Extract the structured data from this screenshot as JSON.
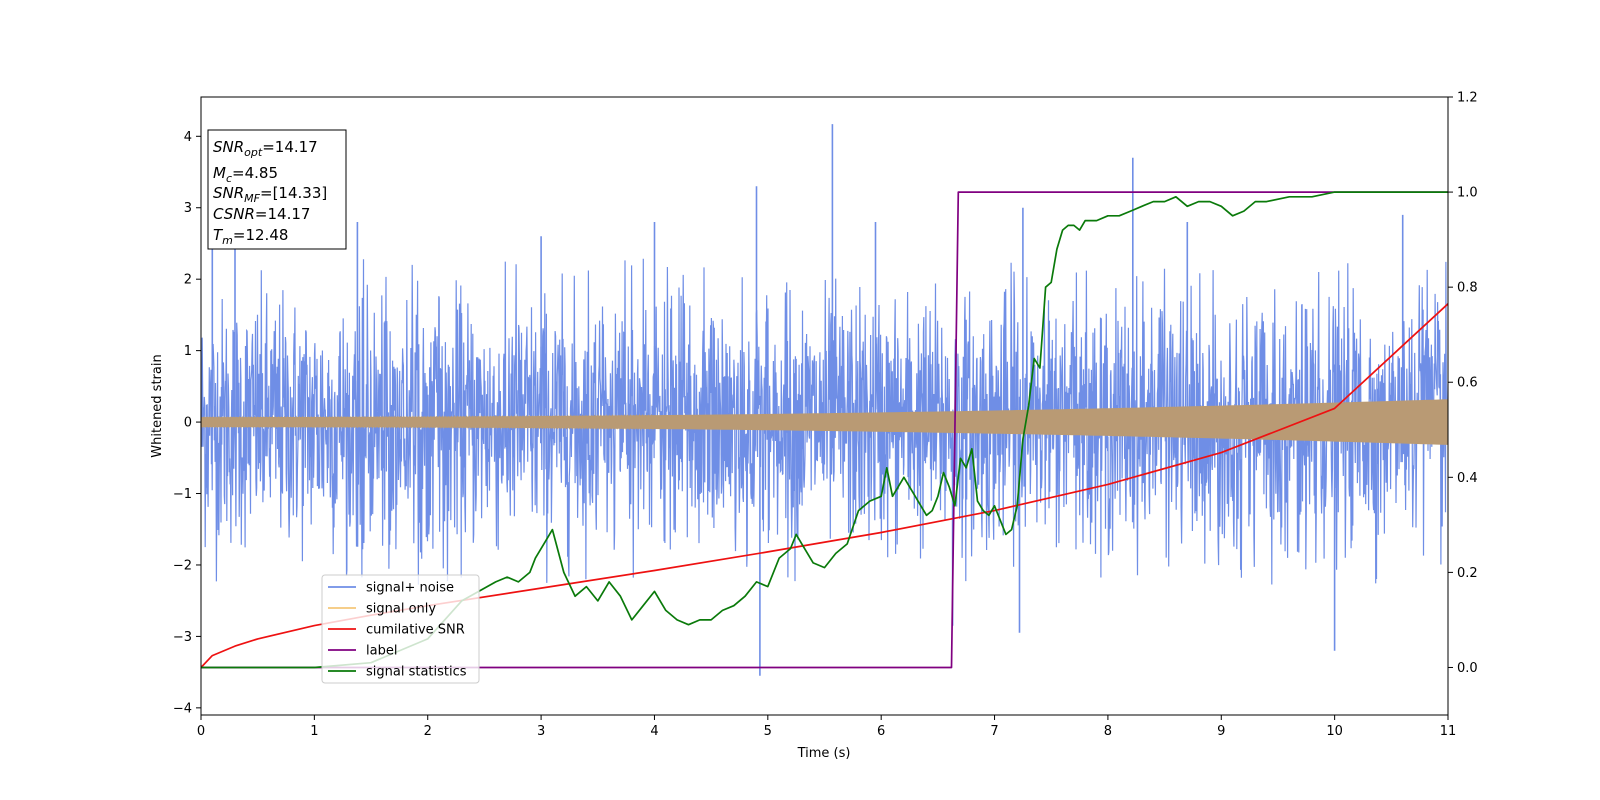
{
  "chart_data": {
    "type": "line",
    "xlabel": "Time (s)",
    "ylabel": "Whitened strain",
    "xlim": [
      0,
      11
    ],
    "ylim_left": [
      -4.1,
      4.55
    ],
    "ylim_right": [
      -0.1,
      1.2
    ],
    "x_ticks": [
      0,
      1,
      2,
      3,
      4,
      5,
      6,
      7,
      8,
      9,
      10,
      11
    ],
    "y_ticks_left": [
      -4,
      -3,
      -2,
      -1,
      0,
      1,
      2,
      3,
      4
    ],
    "y_ticks_right": [
      0.0,
      0.2,
      0.4,
      0.6,
      0.8,
      1.0,
      1.2
    ],
    "grid": false,
    "legend_position": "lower-left",
    "colors": {
      "signal_noise": "#6f8ee6",
      "signal_only": "#f5c77a",
      "overlap": "#b99a74",
      "cumulative_snr": "#ee1111",
      "label": "#800080",
      "signal_statistics": "#0a7a0a"
    },
    "info_box": [
      {
        "symbol": "SNR",
        "sub": "opt",
        "value": "=14.17"
      },
      {
        "symbol": "M",
        "sub": "c",
        "value": "=4.85"
      },
      {
        "symbol": "SNR",
        "sub": "MF",
        "value": "=[14.33]"
      },
      {
        "symbol": "CSNR",
        "sub": "",
        "value": "=14.17"
      },
      {
        "symbol": "T",
        "sub": "m",
        "value": "=12.48"
      }
    ],
    "series": [
      {
        "name": "signal+ noise",
        "axis": "left",
        "envelope_amplitude": 2.3,
        "spikes": [
          [
            0.1,
            2.5
          ],
          [
            0.3,
            2.7
          ],
          [
            1.38,
            2.8
          ],
          [
            3.0,
            2.6
          ],
          [
            4.0,
            2.8
          ],
          [
            4.9,
            3.3
          ],
          [
            4.93,
            -3.55
          ],
          [
            5.57,
            4.17
          ],
          [
            5.95,
            2.8
          ],
          [
            6.63,
            -2.85
          ],
          [
            7.22,
            -2.95
          ],
          [
            7.25,
            3.0
          ],
          [
            8.22,
            3.7
          ],
          [
            8.7,
            2.8
          ],
          [
            10.0,
            -3.2
          ],
          [
            10.6,
            2.9
          ]
        ]
      },
      {
        "name": "signal only",
        "axis": "left",
        "amplitude_start": 0.07,
        "amplitude_end": 0.32
      },
      {
        "name": "cumilative SNR",
        "axis": "right",
        "x": [
          0,
          0.1,
          0.3,
          0.5,
          1,
          1.5,
          2,
          3,
          4,
          5,
          6,
          7,
          8,
          9,
          10,
          11
        ],
        "y": [
          0.0,
          0.025,
          0.045,
          0.06,
          0.088,
          0.11,
          0.13,
          0.167,
          0.204,
          0.243,
          0.284,
          0.33,
          0.385,
          0.452,
          0.545,
          0.765
        ]
      },
      {
        "name": "label",
        "axis": "right",
        "x": [
          0,
          6.62,
          6.68,
          11
        ],
        "y": [
          0,
          0,
          1,
          1
        ]
      },
      {
        "name": "signal statistics",
        "axis": "right",
        "x": [
          0,
          1.0,
          1.5,
          2.0,
          2.3,
          2.6,
          2.7,
          2.8,
          2.9,
          2.95,
          3.0,
          3.05,
          3.1,
          3.2,
          3.3,
          3.4,
          3.5,
          3.6,
          3.7,
          3.8,
          3.9,
          4.0,
          4.1,
          4.2,
          4.3,
          4.4,
          4.5,
          4.6,
          4.7,
          4.8,
          4.9,
          5.0,
          5.1,
          5.2,
          5.25,
          5.3,
          5.35,
          5.4,
          5.5,
          5.6,
          5.7,
          5.8,
          5.9,
          6.0,
          6.05,
          6.1,
          6.2,
          6.3,
          6.4,
          6.45,
          6.5,
          6.55,
          6.6,
          6.65,
          6.7,
          6.75,
          6.8,
          6.85,
          6.9,
          6.95,
          7.0,
          7.1,
          7.15,
          7.2,
          7.25,
          7.3,
          7.35,
          7.4,
          7.45,
          7.5,
          7.55,
          7.6,
          7.65,
          7.7,
          7.75,
          7.8,
          7.85,
          7.9,
          8.0,
          8.1,
          8.2,
          8.3,
          8.4,
          8.5,
          8.6,
          8.7,
          8.8,
          8.9,
          9.0,
          9.1,
          9.2,
          9.3,
          9.4,
          9.6,
          9.8,
          10.0,
          10.3,
          10.6,
          10.9,
          11.0
        ],
        "y": [
          0.0,
          0.0,
          0.01,
          0.06,
          0.14,
          0.18,
          0.19,
          0.18,
          0.2,
          0.23,
          0.25,
          0.27,
          0.29,
          0.2,
          0.15,
          0.17,
          0.14,
          0.18,
          0.15,
          0.1,
          0.13,
          0.16,
          0.12,
          0.1,
          0.09,
          0.1,
          0.1,
          0.12,
          0.13,
          0.15,
          0.18,
          0.17,
          0.23,
          0.25,
          0.28,
          0.26,
          0.24,
          0.22,
          0.21,
          0.24,
          0.26,
          0.33,
          0.35,
          0.36,
          0.42,
          0.36,
          0.4,
          0.36,
          0.32,
          0.33,
          0.36,
          0.41,
          0.38,
          0.34,
          0.44,
          0.42,
          0.46,
          0.35,
          0.33,
          0.32,
          0.34,
          0.28,
          0.29,
          0.34,
          0.48,
          0.55,
          0.65,
          0.63,
          0.8,
          0.81,
          0.88,
          0.92,
          0.93,
          0.93,
          0.92,
          0.94,
          0.94,
          0.94,
          0.95,
          0.95,
          0.96,
          0.97,
          0.98,
          0.98,
          0.99,
          0.97,
          0.98,
          0.98,
          0.97,
          0.95,
          0.96,
          0.98,
          0.98,
          0.99,
          0.99,
          1.0,
          1.0,
          1.0,
          1.0,
          1.0
        ]
      }
    ]
  }
}
